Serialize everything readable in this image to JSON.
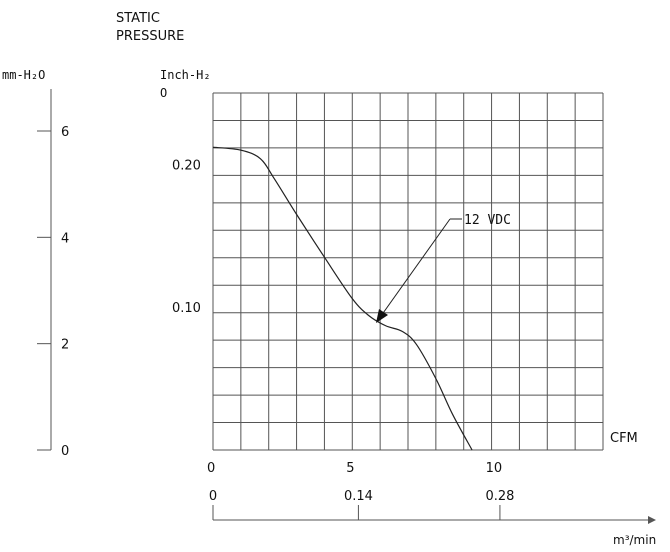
{
  "chart_data": {
    "type": "line",
    "title": "STATIC\nPRESSURE",
    "title_lines": [
      "STATIC",
      "PRESSURE"
    ],
    "left_axis": {
      "label": "mm-H₂O",
      "ticks": [
        "6",
        "4",
        "2",
        "0"
      ],
      "tick_values": [
        6,
        4,
        2,
        0
      ],
      "range": [
        0,
        6
      ]
    },
    "y_axis": {
      "label_line1": "Inch-H₂",
      "label_line2": "O",
      "ticks": [
        "0.20",
        "0.10"
      ],
      "tick_values": [
        0.2,
        0.1
      ],
      "range": [
        0,
        0.25
      ]
    },
    "x_axis": {
      "unit": "CFM",
      "ticks": [
        "0",
        "5",
        "10"
      ],
      "tick_values": [
        0,
        5,
        10
      ],
      "range": [
        0,
        14
      ]
    },
    "bottom_axis": {
      "unit": "m³/min",
      "ticks": [
        "0",
        "0.14",
        "0.28"
      ],
      "tick_values": [
        0,
        0.14,
        0.28
      ]
    },
    "grid": true,
    "series": [
      {
        "name": "12 VDC",
        "x": [
          0,
          1,
          1.7,
          2.2,
          3,
          4,
          5,
          5.6,
          6.2,
          6.8,
          7.3,
          8,
          8.6,
          9.3
        ],
        "y": [
          0.212,
          0.21,
          0.204,
          0.19,
          0.165,
          0.135,
          0.106,
          0.094,
          0.087,
          0.083,
          0.074,
          0.05,
          0.025,
          0.0
        ]
      }
    ],
    "annotations": [
      {
        "text": "12 VDC",
        "x": 5.8,
        "y": 0.094
      }
    ]
  }
}
